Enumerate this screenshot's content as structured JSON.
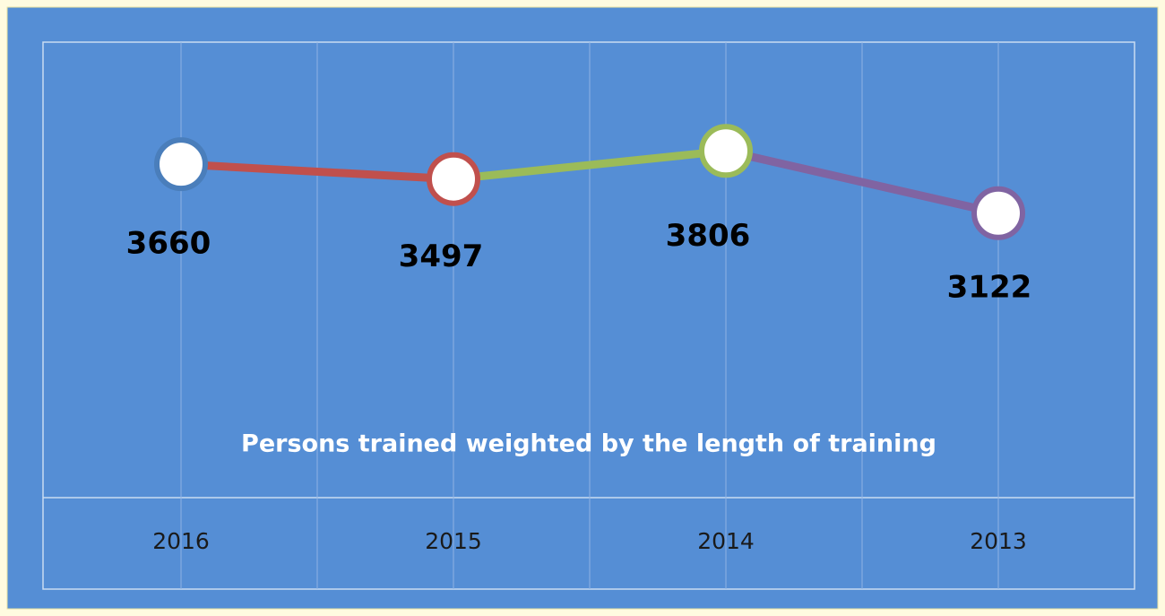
{
  "chart_data": {
    "type": "line",
    "title": "Persons trained weighted by the length of training",
    "categories": [
      "2016",
      "2015",
      "2014",
      "2013"
    ],
    "values": [
      3660,
      3497,
      3806,
      3122
    ],
    "colors": [
      "#4a7ebb",
      "#c0504d",
      "#9bbb59",
      "#8064a2"
    ],
    "ylim": [
      0,
      5000
    ]
  }
}
